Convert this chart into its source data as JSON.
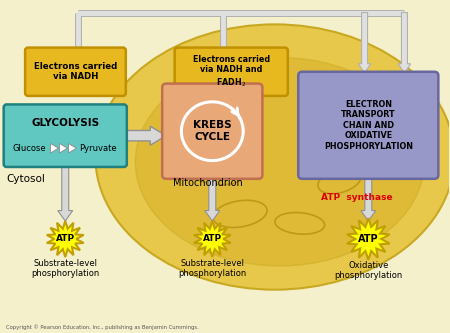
{
  "bg_color": "#f5f0cc",
  "mito_outer_color": "#e8c84a",
  "mito_outer_edge": "#c8a820",
  "mito_inner_color": "#d4b020",
  "glycolysis_color": "#60c8c0",
  "glycolysis_edge": "#208080",
  "krebs_color": "#e8a878",
  "krebs_edge": "#c07050",
  "etc_color": "#9898c8",
  "etc_edge": "#6868a0",
  "nadh_color": "#e8b820",
  "nadh_edge": "#c09000",
  "atp_color": "#ffff00",
  "atp_edge": "#c8a000",
  "arrow_face": "#d8d8d8",
  "arrow_edge": "#909090",
  "text_dark": "#000000",
  "atp_synthase_color": "#dd0000",
  "copyright_text": "Copyright © Pearson Education, Inc., publishing as Benjamin Cummings.",
  "cytosol_label": "Cytosol",
  "mito_label": "Mitochondrion",
  "atp_synthase_label": "ATP  synthase"
}
